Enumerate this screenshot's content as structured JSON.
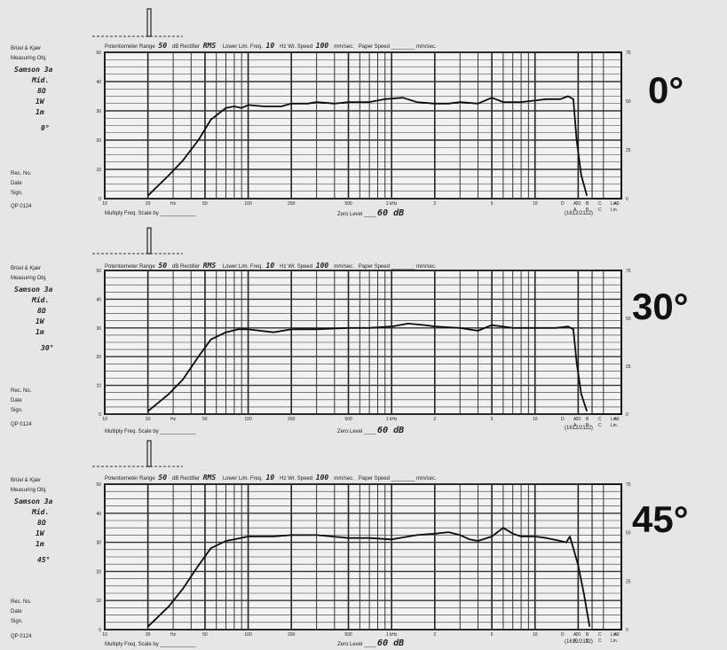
{
  "sheet": {
    "brand": "Brüel & Kjær",
    "measuring_obj_label": "Measuring Obj.",
    "rec_no_label": "Rec. No.",
    "date_label": "Date",
    "sign_label": "Sign.",
    "form_no": "QP 0124",
    "potentiometer_range_label": "Potentiometer Range",
    "potentiometer_range_value": "50",
    "db_label": "dB",
    "rectifier_label": "Rectifier",
    "rectifier_value": "RMS",
    "lower_lim_freq_label": "Lower Lim. Freq.",
    "lower_lim_freq_value": "10",
    "hz_label": "Hz",
    "wr_speed_label": "Wr. Speed",
    "wr_speed_value": "100",
    "mm_sec_label": "mm/sec.",
    "paper_speed_label": "Paper Speed",
    "multiply_label": "Multiply Freq. Scale by",
    "zero_level_label": "Zero Level",
    "zero_level_value": "60 dB",
    "paper_code": "(1612/2112)",
    "weighting_top": [
      "D",
      "A",
      "B",
      "C",
      "Lin."
    ],
    "weighting_bottom": [
      "A",
      "B",
      "C",
      "Lin."
    ],
    "weighting_num": "40",
    "hz_unit_label": "Hz",
    "khz_unit_label": "1 kHz"
  },
  "panels": [
    {
      "angle": "0°",
      "obj_lines": [
        "Samson 3a",
        "Mid.",
        "8Ω",
        "1W",
        "1m"
      ],
      "angle_note": "0°"
    },
    {
      "angle": "30°",
      "obj_lines": [
        "Samson 3a",
        "Mid.",
        "8Ω",
        "1W",
        "1m"
      ],
      "angle_note": "30°"
    },
    {
      "angle": "45°",
      "obj_lines": [
        "Samson 3a",
        "Mid.",
        "8Ω",
        "1W",
        "1m"
      ],
      "angle_note": "45°"
    }
  ],
  "chart_data": [
    {
      "type": "line",
      "title": "0°",
      "xscale": "log",
      "xlim": [
        10,
        40000
      ],
      "ylim": [
        0,
        50
      ],
      "xticks": [
        "10",
        "20",
        "50",
        "100",
        "200",
        "500",
        "1 kHz",
        "2",
        "5",
        "10",
        "20"
      ],
      "yticks_left": [
        "0",
        "10",
        "20",
        "30",
        "40",
        "50"
      ],
      "yticks_right": [
        "0",
        "25",
        "50",
        "75"
      ],
      "yticks_right_top": "0.75",
      "yticks_right_bottom": "0",
      "series": [
        {
          "x": [
            20,
            28,
            35,
            45,
            55,
            70,
            80,
            90,
            100,
            130,
            170,
            200,
            260,
            300,
            400,
            500,
            700,
            900,
            1200,
            1500,
            2000,
            2500,
            3000,
            4000,
            5000,
            6000,
            7000,
            8000,
            10000,
            12000,
            15000,
            17000,
            18500,
            19500,
            21000,
            23000
          ],
          "y": [
            1,
            8,
            13,
            20,
            27,
            31,
            31.5,
            31,
            32,
            31.5,
            31.5,
            32.5,
            32.5,
            33,
            32.5,
            33,
            33,
            34,
            34.5,
            33,
            32.5,
            32.5,
            33,
            32.5,
            34.5,
            33,
            33,
            33,
            33.5,
            34,
            34,
            35,
            34,
            20,
            8,
            1
          ]
        }
      ]
    },
    {
      "type": "line",
      "title": "30°",
      "xscale": "log",
      "xlim": [
        10,
        40000
      ],
      "ylim": [
        0,
        50
      ],
      "xticks": [
        "10",
        "20",
        "50",
        "100",
        "200",
        "500",
        "1 kHz",
        "2",
        "5",
        "10",
        "20"
      ],
      "yticks_left": [
        "0",
        "10",
        "20",
        "30",
        "40",
        "50"
      ],
      "yticks_right": [
        "0",
        "25",
        "50",
        "75"
      ],
      "series": [
        {
          "x": [
            20,
            28,
            35,
            45,
            55,
            70,
            85,
            100,
            150,
            200,
            300,
            500,
            700,
            1000,
            1300,
            1700,
            2000,
            3000,
            4000,
            5000,
            7000,
            10000,
            14000,
            17000,
            18500,
            19500,
            21000,
            23000
          ],
          "y": [
            1,
            7,
            12,
            20,
            26,
            28.5,
            29.5,
            29.5,
            28.5,
            29.5,
            29.5,
            30,
            30,
            30.5,
            31.5,
            31,
            30.5,
            30,
            29,
            31,
            30,
            30,
            30,
            30.5,
            29.5,
            18,
            7,
            1
          ]
        }
      ]
    },
    {
      "type": "line",
      "title": "45°",
      "xscale": "log",
      "xlim": [
        10,
        40000
      ],
      "ylim": [
        0,
        50
      ],
      "xticks": [
        "10",
        "20",
        "50",
        "100",
        "200",
        "500",
        "1 kHz",
        "2",
        "5",
        "10",
        "20"
      ],
      "yticks_left": [
        "0",
        "10",
        "20",
        "30",
        "40",
        "50"
      ],
      "yticks_right": [
        "0",
        "25",
        "50",
        "75"
      ],
      "series": [
        {
          "x": [
            20,
            28,
            35,
            45,
            55,
            70,
            80,
            100,
            150,
            200,
            300,
            500,
            700,
            1000,
            1500,
            2000,
            2500,
            3000,
            3500,
            4000,
            5000,
            6000,
            7000,
            8000,
            10000,
            12000,
            15000,
            16500,
            17500,
            18500,
            20000,
            22000,
            24000
          ],
          "y": [
            1,
            8,
            14,
            22,
            28,
            30.5,
            31,
            32,
            32,
            32.5,
            32.5,
            31.5,
            31.5,
            31,
            32.5,
            33,
            33.5,
            32.5,
            31,
            30.5,
            32,
            35,
            33,
            32,
            32,
            31.5,
            30.5,
            30,
            32,
            28,
            22,
            12,
            1
          ]
        }
      ]
    }
  ]
}
